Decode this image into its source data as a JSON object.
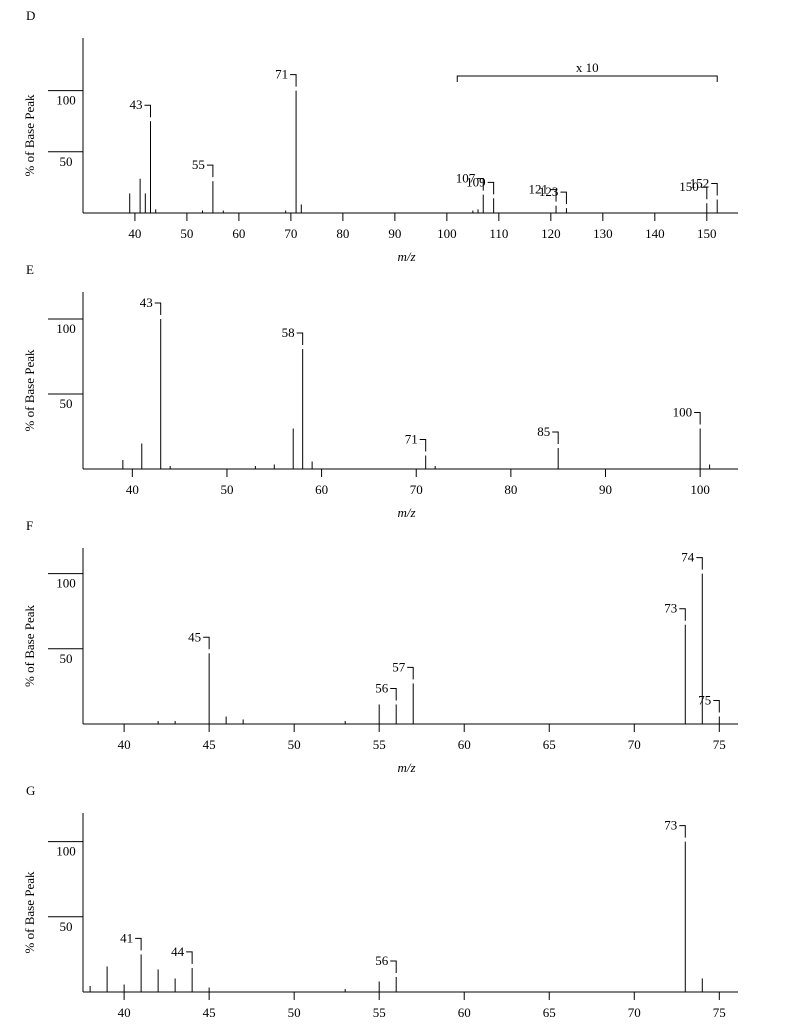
{
  "chart_data": [
    {
      "type": "bar",
      "panel": "D",
      "ylabel": "% of Base Peak",
      "xlabel": "m/z",
      "color": "#000000",
      "x": [
        39,
        41,
        42,
        43,
        44,
        53,
        55,
        57,
        69,
        71,
        72,
        105,
        106,
        107,
        109,
        121,
        123,
        150,
        152
      ],
      "values": [
        16,
        28,
        16,
        75,
        3,
        2,
        26,
        2,
        2,
        100,
        7,
        2,
        3,
        15,
        12,
        6,
        4,
        8,
        11
      ],
      "labeled_mz": [
        43,
        55,
        71,
        107,
        109,
        121,
        123,
        150,
        152
      ],
      "annotation": {
        "text": "x 10",
        "xrange": [
          102,
          152
        ]
      },
      "xlim": [
        30.4,
        156
      ],
      "xticks": [
        40,
        50,
        60,
        70,
        80,
        90,
        100,
        110,
        120,
        130,
        140,
        150
      ],
      "ylim": [
        0,
        143
      ],
      "yticks": [
        50,
        100
      ]
    },
    {
      "type": "bar",
      "panel": "E",
      "ylabel": "% of Base Peak",
      "xlabel": "m/z",
      "color": "#000000",
      "x": [
        39,
        41,
        43,
        44,
        53,
        55,
        57,
        58,
        59,
        71,
        72,
        85,
        100,
        101
      ],
      "values": [
        6,
        17,
        100,
        2,
        2,
        3,
        27,
        80,
        5,
        9,
        2,
        14,
        27,
        3
      ],
      "labeled_mz": [
        43,
        58,
        71,
        85,
        100
      ],
      "xlim": [
        35,
        104
      ],
      "xticks": [
        40,
        50,
        60,
        70,
        80,
        90,
        100
      ],
      "ylim": [
        0,
        118
      ],
      "yticks": [
        50,
        100
      ]
    },
    {
      "type": "bar",
      "panel": "F",
      "ylabel": "% of Base Peak",
      "xlabel": "m/z",
      "color": "#000000",
      "x": [
        42,
        43,
        45,
        46,
        47,
        53,
        55,
        56,
        57,
        73,
        74,
        75
      ],
      "values": [
        2,
        2,
        47,
        5,
        3,
        2,
        13,
        13,
        27,
        66,
        100,
        5
      ],
      "labeled_mz": [
        45,
        56,
        57,
        73,
        74,
        75
      ],
      "xlim": [
        37.7,
        76.1
      ],
      "xticks": [
        40,
        45,
        50,
        55,
        60,
        65,
        70,
        75
      ],
      "ylim": [
        0,
        117
      ],
      "yticks": [
        50,
        100
      ]
    },
    {
      "type": "bar",
      "panel": "G",
      "ylabel": "% of Base Peak",
      "color": "#000000",
      "x": [
        38,
        39,
        40,
        41,
        42,
        43,
        44,
        45,
        53,
        55,
        56,
        73,
        74
      ],
      "values": [
        4,
        17,
        5,
        25,
        15,
        9,
        16,
        3,
        2,
        7,
        10,
        100,
        9
      ],
      "labeled_mz": [
        41,
        44,
        56,
        73
      ],
      "xlim": [
        37.7,
        76.1
      ],
      "xticks": [
        40,
        45,
        50,
        55,
        60,
        65,
        70,
        75
      ],
      "ylim": [
        0,
        119
      ],
      "yticks": [
        50,
        100
      ]
    }
  ]
}
